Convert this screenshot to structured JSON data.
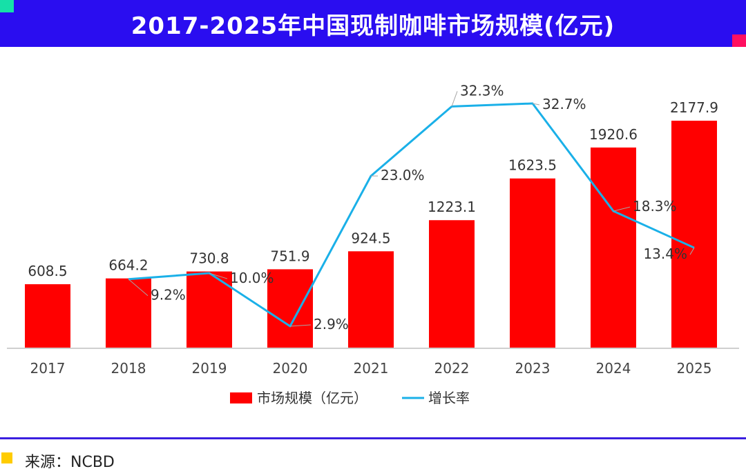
{
  "header": {
    "title": "2017-2025年中国现制咖啡市场规模(亿元)"
  },
  "footer": {
    "source": "来源：NCBD"
  },
  "colors": {
    "title_bg": "#2a0df0",
    "bar": "#ff0000",
    "line": "#1ab0e8",
    "accent_green": "#16e0a8",
    "accent_pink": "#ff1060",
    "source_marker": "#ffcc00"
  },
  "chart_data": {
    "type": "bar",
    "categories": [
      "2017",
      "2018",
      "2019",
      "2020",
      "2021",
      "2022",
      "2023",
      "2024",
      "2025"
    ],
    "series": [
      {
        "name": "市场规模（亿元）",
        "type": "bar",
        "values": [
          608.5,
          664.2,
          730.8,
          751.9,
          924.5,
          1223.1,
          1623.5,
          1920.6,
          2177.9
        ],
        "labels": [
          "608.5",
          "664.2",
          "730.8",
          "751.9",
          "924.5",
          "1223.1",
          "1623.5",
          "1920.6",
          "2177.9"
        ]
      },
      {
        "name": "增长率",
        "type": "line",
        "x": [
          "2018",
          "2019",
          "2020",
          "2021",
          "2022",
          "2023",
          "2024",
          "2025"
        ],
        "values": [
          9.2,
          10.0,
          2.9,
          23.0,
          32.3,
          32.7,
          18.3,
          13.4
        ],
        "labels": [
          "9.2%",
          "10.0%",
          "2.9%",
          "23.0%",
          "32.3%",
          "32.7%",
          "18.3%",
          "13.4%"
        ]
      }
    ],
    "ylim_bar": [
      0,
      2300
    ],
    "ylim_line": [
      0,
      35
    ],
    "legend": "bottom",
    "grid": false
  }
}
